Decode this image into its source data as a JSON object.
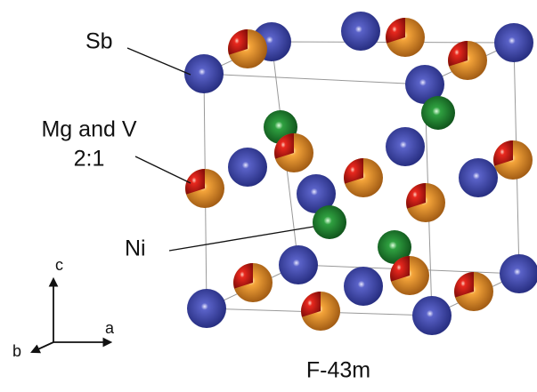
{
  "labels": {
    "sb": "Sb",
    "mg_v": "Mg and V",
    "ratio": "2:1",
    "ni": "Ni"
  },
  "axes": {
    "c": "c",
    "a": "a",
    "b": "b"
  },
  "caption": "F-43m"
}
